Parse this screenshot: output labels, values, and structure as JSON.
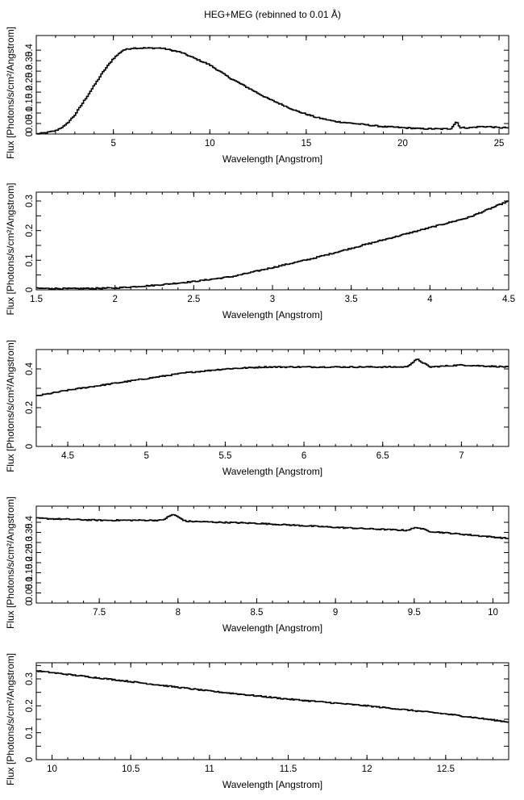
{
  "title": "HEG+MEG (rebinned to 0.01 Å)",
  "chart_data": [
    {
      "type": "line",
      "xlabel": "Wavelength [Angstrom]",
      "ylabel": "Flux [Photons/s/cm²/Angstrom]",
      "xlim": [
        1.0,
        25.5
      ],
      "ylim": [
        0,
        0.47
      ],
      "xticks": [
        5,
        10,
        15,
        20,
        25
      ],
      "yticks": [
        0,
        0.05,
        0.1,
        0.15,
        0.2,
        0.25,
        0.3,
        0.35,
        0.4
      ],
      "yticklabels": [
        "0",
        "0.05",
        "0.1",
        "0.15",
        "0.2",
        "0.25",
        "0.3",
        "0.35",
        "0.4"
      ],
      "series": [
        {
          "x": [
            1.0,
            1.5,
            2.0,
            2.5,
            3.0,
            3.5,
            4.0,
            4.5,
            5.0,
            5.5,
            6.0,
            6.5,
            7.0,
            7.5,
            8.0,
            8.5,
            9.0,
            9.5,
            10.0,
            10.5,
            11.0,
            11.5,
            12.0,
            12.5,
            13.0,
            13.5,
            14.0,
            14.5,
            15.0,
            15.5,
            16.0,
            16.5,
            17.0,
            17.5,
            18.0,
            18.5,
            19.0,
            19.5,
            20.0,
            20.5,
            21.0,
            21.5,
            22.0,
            22.5,
            22.8,
            23.0,
            23.5,
            24.0,
            24.5,
            25.0,
            25.5
          ],
          "y": [
            0.0,
            0.006,
            0.015,
            0.04,
            0.09,
            0.16,
            0.23,
            0.3,
            0.36,
            0.4,
            0.41,
            0.41,
            0.41,
            0.41,
            0.4,
            0.39,
            0.37,
            0.35,
            0.33,
            0.3,
            0.27,
            0.245,
            0.22,
            0.195,
            0.17,
            0.15,
            0.13,
            0.11,
            0.095,
            0.08,
            0.07,
            0.06,
            0.055,
            0.05,
            0.045,
            0.04,
            0.035,
            0.033,
            0.03,
            0.028,
            0.025,
            0.025,
            0.024,
            0.025,
            0.06,
            0.03,
            0.03,
            0.035,
            0.035,
            0.03,
            0.03
          ]
        }
      ]
    },
    {
      "type": "line",
      "xlabel": "Wavelength [Angstrom]",
      "ylabel": "Flux [Photons/s/cm²/Angstrom]",
      "xlim": [
        1.5,
        4.5
      ],
      "ylim": [
        0,
        0.33
      ],
      "xticks": [
        1.5,
        2,
        2.5,
        3,
        3.5,
        4,
        4.5
      ],
      "yticks": [
        0,
        0.05,
        0.1,
        0.15,
        0.2,
        0.25,
        0.3
      ],
      "yticklabels": [
        "0",
        "",
        "0.1",
        "",
        "0.2",
        "",
        "0.3"
      ],
      "series": [
        {
          "x": [
            1.5,
            1.75,
            2.0,
            2.25,
            2.5,
            2.75,
            3.0,
            3.25,
            3.5,
            3.75,
            4.0,
            4.25,
            4.5
          ],
          "y": [
            0.005,
            0.004,
            0.006,
            0.015,
            0.028,
            0.045,
            0.075,
            0.105,
            0.14,
            0.175,
            0.21,
            0.245,
            0.3
          ]
        }
      ]
    },
    {
      "type": "line",
      "xlabel": "Wavelength [Angstrom]",
      "ylabel": "Flux [Photons/s/cm²/Angstrom]",
      "xlim": [
        4.3,
        7.3
      ],
      "ylim": [
        0,
        0.5
      ],
      "xticks": [
        4.5,
        5,
        5.5,
        6,
        6.5,
        7
      ],
      "yticks": [
        0,
        0.1,
        0.2,
        0.3,
        0.4
      ],
      "yticklabels": [
        "0",
        "",
        "0.2",
        "",
        "0.4"
      ],
      "series": [
        {
          "x": [
            4.3,
            4.5,
            4.75,
            5.0,
            5.25,
            5.5,
            5.75,
            6.0,
            6.25,
            6.5,
            6.65,
            6.72,
            6.8,
            7.0,
            7.3
          ],
          "y": [
            0.26,
            0.29,
            0.32,
            0.35,
            0.38,
            0.4,
            0.41,
            0.41,
            0.41,
            0.41,
            0.41,
            0.45,
            0.41,
            0.42,
            0.41
          ]
        }
      ]
    },
    {
      "type": "line",
      "xlabel": "Wavelength [Angstrom]",
      "ylabel": "Flux [Photons/s/cm²/Angstrom]",
      "xlim": [
        7.1,
        10.1
      ],
      "ylim": [
        0,
        0.48
      ],
      "xticks": [
        7.5,
        8,
        8.5,
        9,
        9.5,
        10
      ],
      "yticks": [
        0,
        0.05,
        0.1,
        0.15,
        0.2,
        0.25,
        0.3,
        0.35,
        0.4
      ],
      "yticklabels": [
        "0",
        "0.05",
        "0.1",
        "0.15",
        "0.2",
        "0.25",
        "0.3",
        "0.35",
        "0.4"
      ],
      "series": [
        {
          "x": [
            7.1,
            7.5,
            7.9,
            7.97,
            8.05,
            8.5,
            9.0,
            9.45,
            9.52,
            9.6,
            10.1
          ],
          "y": [
            0.42,
            0.41,
            0.41,
            0.44,
            0.405,
            0.395,
            0.375,
            0.36,
            0.375,
            0.355,
            0.32
          ]
        }
      ]
    },
    {
      "type": "line",
      "xlabel": "Wavelength [Angstrom]",
      "ylabel": "Flux [Photons/s/cm²/Angstrom]",
      "xlim": [
        9.9,
        12.9
      ],
      "ylim": [
        0,
        0.36
      ],
      "xticks": [
        10,
        10.5,
        11,
        11.5,
        12,
        12.5
      ],
      "yticks": [
        0,
        0.05,
        0.1,
        0.15,
        0.2,
        0.25,
        0.3,
        0.35
      ],
      "yticklabels": [
        "0",
        "",
        "0.1",
        "",
        "0.2",
        "",
        "0.3",
        ""
      ],
      "series": [
        {
          "x": [
            9.9,
            10.5,
            11.0,
            11.5,
            12.0,
            12.5,
            12.9
          ],
          "y": [
            0.33,
            0.29,
            0.255,
            0.225,
            0.2,
            0.17,
            0.14
          ]
        }
      ]
    }
  ]
}
